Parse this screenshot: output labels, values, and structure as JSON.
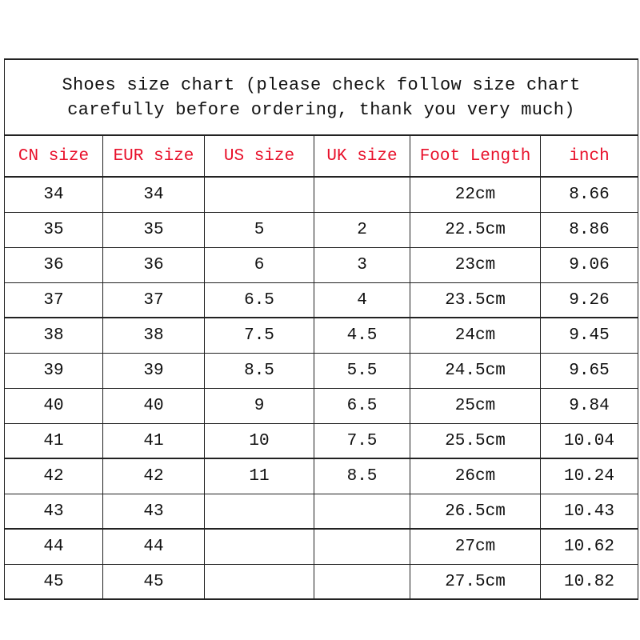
{
  "title": {
    "line1": "Shoes size chart (please check follow size chart",
    "line2": "carefully before ordering, thank you very much)"
  },
  "colors": {
    "header_text": "#e8102a",
    "body_text": "#111111",
    "border": "#222222"
  },
  "columns": [
    "CN size",
    "EUR size",
    "US size",
    "UK size",
    "Foot Length",
    "inch"
  ],
  "rows": [
    [
      "34",
      "34",
      "",
      "",
      "22cm",
      "8.66"
    ],
    [
      "35",
      "35",
      "5",
      "2",
      "22.5cm",
      "8.86"
    ],
    [
      "36",
      "36",
      "6",
      "3",
      "23cm",
      "9.06"
    ],
    [
      "37",
      "37",
      "6.5",
      "4",
      "23.5cm",
      "9.26"
    ],
    [
      "38",
      "38",
      "7.5",
      "4.5",
      "24cm",
      "9.45"
    ],
    [
      "39",
      "39",
      "8.5",
      "5.5",
      "24.5cm",
      "9.65"
    ],
    [
      "40",
      "40",
      "9",
      "6.5",
      "25cm",
      "9.84"
    ],
    [
      "41",
      "41",
      "10",
      "7.5",
      "25.5cm",
      "10.04"
    ],
    [
      "42",
      "42",
      "11",
      "8.5",
      "26cm",
      "10.24"
    ],
    [
      "43",
      "43",
      "",
      "",
      "26.5cm",
      "10.43"
    ],
    [
      "44",
      "44",
      "",
      "",
      "27cm",
      "10.62"
    ],
    [
      "45",
      "45",
      "",
      "",
      "27.5cm",
      "10.82"
    ]
  ]
}
